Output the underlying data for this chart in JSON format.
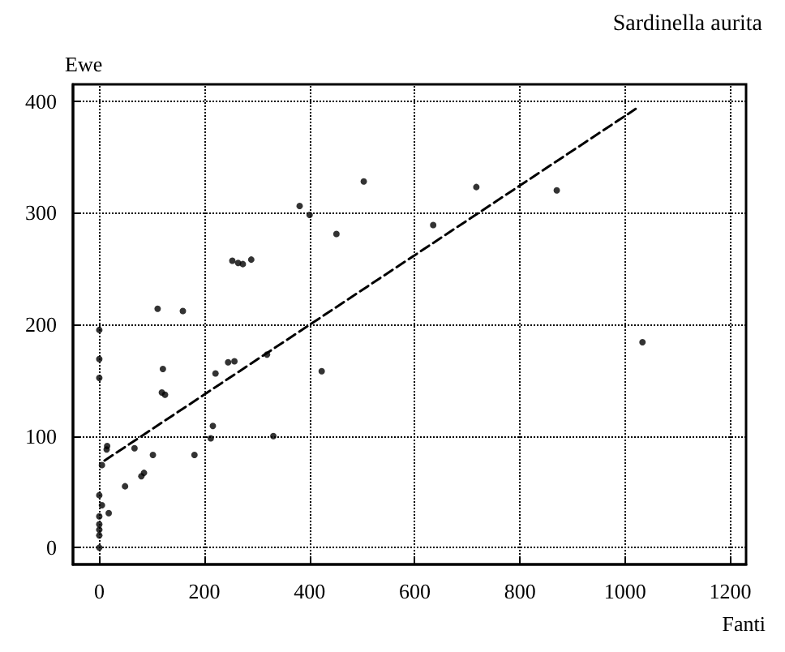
{
  "chart_data": {
    "type": "scatter",
    "title": "Sardinella aurita",
    "xlabel": "Fanti",
    "ylabel": "Ewe",
    "xlim": [
      -50,
      1230
    ],
    "ylim": [
      -15,
      415
    ],
    "xticks": [
      0,
      200,
      400,
      600,
      800,
      1000,
      1200
    ],
    "yticks": [
      0,
      100,
      200,
      300,
      400
    ],
    "grid": true,
    "marker": "circle",
    "series": [
      {
        "color": "#000000",
        "x": [
          0,
          0,
          0,
          0,
          0,
          5,
          0,
          18,
          5,
          0,
          0,
          0,
          14,
          15,
          49,
          67,
          80,
          85,
          102,
          111,
          121,
          119,
          125,
          159,
          181,
          212,
          216,
          221,
          245,
          257,
          253,
          264,
          273,
          289,
          319,
          331,
          381,
          400,
          423,
          451,
          503,
          635,
          717,
          870,
          1033
        ],
        "values": [
          0,
          11,
          16,
          21,
          28,
          38,
          47,
          31,
          74,
          152,
          169,
          195,
          88,
          91,
          55,
          89,
          64,
          67,
          83,
          214,
          160,
          139,
          137,
          212,
          83,
          98,
          109,
          156,
          166,
          167,
          257,
          255,
          254,
          258,
          173,
          100,
          306,
          298,
          158,
          281,
          328,
          289,
          323,
          320,
          184
        ]
      },
      {
        "type": "line",
        "color": "#000000",
        "marker": "none",
        "line_style": "dashed",
        "x": [
          10,
          1020
        ],
        "values": [
          78,
          393
        ]
      }
    ]
  }
}
